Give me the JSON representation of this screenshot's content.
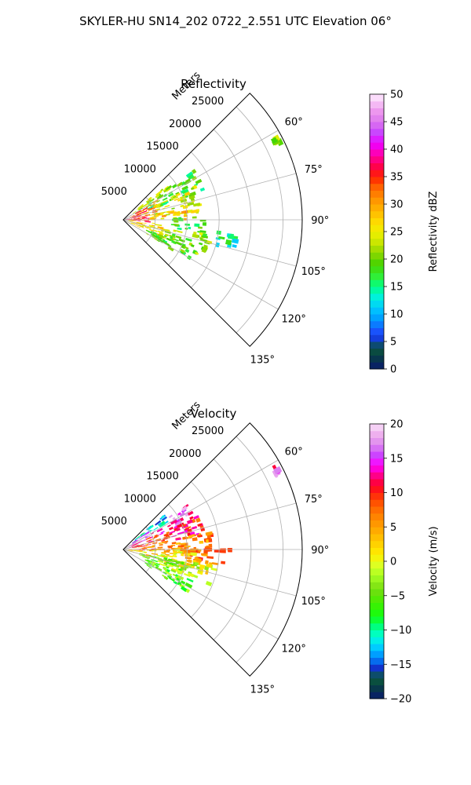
{
  "figure": {
    "suptitle": "SKYLER-HU  SN14_202  0722_2.551 UTC Elevation 06°"
  },
  "chart_data": [
    {
      "type": "heatmap",
      "subtype": "polar-sector",
      "title": "Reflectivity",
      "radial_label": "Meters",
      "radial_ticks": [
        5000,
        10000,
        15000,
        20000,
        25000
      ],
      "radial_tick_labels": [
        "5000",
        "10000",
        "15000",
        "20000",
        "25000"
      ],
      "radial_max": 28000,
      "theta_range_deg": [
        45,
        135
      ],
      "theta_ticks_deg": [
        60,
        75,
        90,
        105,
        120,
        135
      ],
      "theta_tick_labels": [
        "60°",
        "75°",
        "90°",
        "105°",
        "120°",
        "135°"
      ],
      "grid": true,
      "colorbar": {
        "label": "Reflectivity dBZ",
        "vmin": 0,
        "vmax": 50,
        "ticks": [
          0,
          5,
          10,
          15,
          20,
          25,
          30,
          35,
          40,
          45,
          50
        ],
        "tick_labels": [
          "0",
          "5",
          "10",
          "15",
          "20",
          "25",
          "30",
          "35",
          "40",
          "45",
          "50"
        ]
      },
      "echo_regions": [
        {
          "theta": [
            50,
            60
          ],
          "range": [
            2000,
            9000
          ],
          "value": 22
        },
        {
          "theta": [
            55,
            70
          ],
          "range": [
            4000,
            13500
          ],
          "value": 18
        },
        {
          "theta": [
            60,
            80
          ],
          "range": [
            1000,
            6000
          ],
          "value": 33
        },
        {
          "theta": [
            65,
            85
          ],
          "range": [
            5000,
            12500
          ],
          "value": 24
        },
        {
          "theta": [
            75,
            95
          ],
          "range": [
            0,
            4000
          ],
          "value": 36
        },
        {
          "theta": [
            80,
            90
          ],
          "range": [
            4000,
            10000
          ],
          "value": 28
        },
        {
          "theta": [
            88,
            100
          ],
          "range": [
            8000,
            13000
          ],
          "value": 17
        },
        {
          "theta": [
            95,
            115
          ],
          "range": [
            1000,
            7000
          ],
          "value": 26
        },
        {
          "theta": [
            100,
            115
          ],
          "range": [
            6000,
            14000
          ],
          "value": 21
        },
        {
          "theta": [
            110,
            122
          ],
          "range": [
            4000,
            12000
          ],
          "value": 19
        },
        {
          "theta": [
            95,
            105
          ],
          "range": [
            15000,
            18000
          ],
          "value": 15
        },
        {
          "theta": [
            62,
            64
          ],
          "range": [
            26500,
            27500
          ],
          "value": 22
        }
      ]
    },
    {
      "type": "heatmap",
      "subtype": "polar-sector",
      "title": "Velocity",
      "radial_label": "Meters",
      "radial_ticks": [
        5000,
        10000,
        15000,
        20000,
        25000
      ],
      "radial_tick_labels": [
        "5000",
        "10000",
        "15000",
        "20000",
        "25000"
      ],
      "radial_max": 28000,
      "theta_range_deg": [
        45,
        135
      ],
      "theta_ticks_deg": [
        60,
        75,
        90,
        105,
        120,
        135
      ],
      "theta_tick_labels": [
        "60°",
        "75°",
        "90°",
        "105°",
        "120°",
        "135°"
      ],
      "grid": true,
      "colorbar": {
        "label": "Velocity (m/s)",
        "vmin": -20,
        "vmax": 20,
        "ticks": [
          -20,
          -15,
          -10,
          -5,
          0,
          5,
          10,
          15,
          20
        ],
        "tick_labels": [
          "−20",
          "−15",
          "−10",
          "−5",
          "0",
          "5",
          "10",
          "15",
          "20"
        ]
      },
      "echo_regions": [
        {
          "theta": [
            50,
            58
          ],
          "range": [
            2000,
            9000
          ],
          "value": -12
        },
        {
          "theta": [
            55,
            68
          ],
          "range": [
            1000,
            12000
          ],
          "value": 15
        },
        {
          "theta": [
            66,
            80
          ],
          "range": [
            1000,
            13000
          ],
          "value": 10
        },
        {
          "theta": [
            78,
            92
          ],
          "range": [
            1000,
            14000
          ],
          "value": 7
        },
        {
          "theta": [
            88,
            100
          ],
          "range": [
            9000,
            17000
          ],
          "value": 8
        },
        {
          "theta": [
            90,
            105
          ],
          "range": [
            0,
            12000
          ],
          "value": 2
        },
        {
          "theta": [
            100,
            112
          ],
          "range": [
            6000,
            15000
          ],
          "value": 0
        },
        {
          "theta": [
            102,
            118
          ],
          "range": [
            3000,
            10000
          ],
          "value": -4
        },
        {
          "theta": [
            112,
            124
          ],
          "range": [
            4000,
            12000
          ],
          "value": -5
        },
        {
          "theta": [
            62,
            64
          ],
          "range": [
            26500,
            27500
          ],
          "value": 15
        }
      ]
    }
  ]
}
